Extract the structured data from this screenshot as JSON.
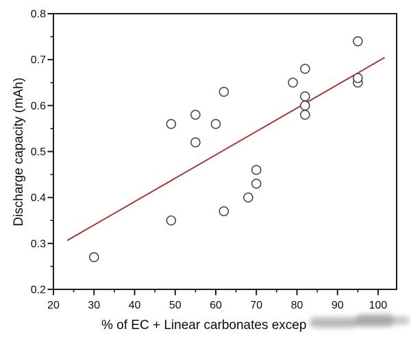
{
  "chart_data": {
    "type": "scatter",
    "title": "",
    "xlabel_visible": "% of EC + Linear carbonates excep",
    "xlabel_truncated_by_watermark": true,
    "ylabel": "Discharge capacity (mAh)",
    "xlim": [
      20,
      104.56
    ],
    "ylim": [
      0.2,
      0.8
    ],
    "grid": false,
    "legend": "none",
    "x_axis": {
      "major": [
        {
          "value": 20,
          "label": "20"
        },
        {
          "value": 30,
          "label": "30"
        },
        {
          "value": 40,
          "label": "40"
        },
        {
          "value": 50,
          "label": "50"
        },
        {
          "value": 60,
          "label": "60"
        },
        {
          "value": 70,
          "label": "70"
        },
        {
          "value": 80,
          "label": "80"
        },
        {
          "value": 90,
          "label": "90"
        },
        {
          "value": 100,
          "label": "100"
        }
      ],
      "minor": [
        25,
        35,
        45,
        55,
        65,
        75,
        85,
        95
      ]
    },
    "y_axis": {
      "major": [
        {
          "value": 0.2,
          "label": "0.2"
        },
        {
          "value": 0.3,
          "label": "0.3"
        },
        {
          "value": 0.4,
          "label": "0.4"
        },
        {
          "value": 0.5,
          "label": "0.5"
        },
        {
          "value": 0.6,
          "label": "0.6"
        },
        {
          "value": 0.7,
          "label": "0.7"
        },
        {
          "value": 0.8,
          "label": "0.8"
        }
      ],
      "minor": [
        0.25,
        0.35,
        0.45,
        0.55,
        0.65,
        0.75
      ]
    },
    "points": [
      [
        30,
        0.27
      ],
      [
        49,
        0.35
      ],
      [
        49,
        0.56
      ],
      [
        55,
        0.52
      ],
      [
        55,
        0.58
      ],
      [
        60,
        0.56
      ],
      [
        62,
        0.37
      ],
      [
        62,
        0.63
      ],
      [
        68,
        0.4
      ],
      [
        70,
        0.43
      ],
      [
        70,
        0.46
      ],
      [
        79,
        0.65
      ],
      [
        82,
        0.58
      ],
      [
        82,
        0.6
      ],
      [
        82,
        0.62
      ],
      [
        82,
        0.68
      ],
      [
        95,
        0.65
      ],
      [
        95,
        0.66
      ],
      [
        95,
        0.74
      ]
    ],
    "trendline": {
      "x1": 23.5,
      "y1": 0.307,
      "x2": 101.5,
      "y2": 0.704
    },
    "marker": {
      "radius": 6.5,
      "stroke_width": 1.6,
      "fill": "#ffffff"
    },
    "colors": {
      "trendline": "#a3312b",
      "marker_stroke": "#474747",
      "axis": "#1c1c1c",
      "text": "#0d0d0d",
      "background": "#ffffff"
    }
  }
}
